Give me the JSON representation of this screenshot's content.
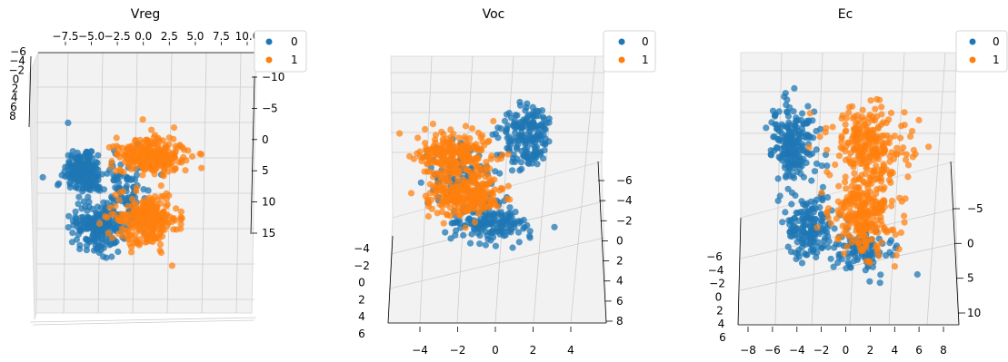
{
  "colors": {
    "class_0": "#1f77b4",
    "class_1": "#ff7f0e",
    "pane": "#f2f2f2",
    "grid": "#cccccc",
    "axis": "#000000"
  },
  "chart_data": [
    {
      "type": "scatter",
      "title": "Vreg",
      "projection": "3d",
      "grid": true,
      "legend_position": "top-right",
      "legend": [
        "0",
        "1"
      ],
      "axis_a_ticks": [
        "−7.5",
        "−5.0",
        "−2.5",
        "0.0",
        "2.5",
        "5.0",
        "7.5",
        "10.0"
      ],
      "axis_b_ticks": [
        "−10",
        "−5",
        "0",
        "5",
        "10",
        "15"
      ],
      "axis_c_ticks": [
        "−6",
        "−4",
        "−2",
        "0",
        "2",
        "4",
        "6",
        "8"
      ],
      "series": [
        {
          "name": "0",
          "clusters": [
            {
              "x": -6.0,
              "y": 0.5,
              "sx": 2.0,
              "sy": 3.0,
              "n": 190
            },
            {
              "x": -4.5,
              "y": 9.0,
              "sx": 2.2,
              "sy": 3.3,
              "n": 190
            },
            {
              "x": -1.0,
              "y": 4.0,
              "sx": 2.5,
              "sy": 4.5,
              "n": 110
            }
          ]
        },
        {
          "name": "1",
          "clusters": [
            {
              "x": 2.0,
              "y": -2.0,
              "sx": 3.3,
              "sy": 2.4,
              "n": 240
            },
            {
              "x": 1.5,
              "y": 8.0,
              "sx": 3.0,
              "sy": 3.4,
              "n": 260
            }
          ]
        }
      ]
    },
    {
      "type": "scatter",
      "title": "Voc",
      "projection": "3d",
      "grid": true,
      "legend_position": "top-right",
      "legend": [
        "0",
        "1"
      ],
      "axis_a_ticks": [
        "−4",
        "−2",
        "0",
        "2",
        "4"
      ],
      "axis_b_ticks": [
        "−6",
        "−4",
        "−2",
        "0",
        "2",
        "4",
        "6",
        "8"
      ],
      "axis_c_ticks": [
        "−4",
        "−2",
        "0",
        "2",
        "4",
        "6"
      ],
      "series": [
        {
          "name": "0",
          "clusters": [
            {
              "x": 2.5,
              "y": -1.0,
              "sx": 1.2,
              "sy": 2.2,
              "n": 180
            },
            {
              "x": 0.5,
              "y": 6.0,
              "sx": 1.8,
              "sy": 1.3,
              "n": 170
            },
            {
              "x": -1.2,
              "y": 2.0,
              "sx": 1.6,
              "sy": 2.0,
              "n": 100
            }
          ]
        },
        {
          "name": "1",
          "clusters": [
            {
              "x": -1.5,
              "y": 0.5,
              "sx": 1.7,
              "sy": 1.6,
              "n": 230
            },
            {
              "x": -1.0,
              "y": 3.8,
              "sx": 1.6,
              "sy": 1.5,
              "n": 250
            }
          ]
        }
      ]
    },
    {
      "type": "scatter",
      "title": "Ec",
      "projection": "3d",
      "grid": true,
      "legend_position": "top-right",
      "legend": [
        "0",
        "1"
      ],
      "axis_a_ticks": [
        "−8",
        "−6",
        "−4",
        "−2",
        "0",
        "2",
        "4",
        "6",
        "8"
      ],
      "axis_b_ticks": [
        "−5",
        "0",
        "5",
        "10"
      ],
      "axis_c_ticks": [
        "−6",
        "−4",
        "−2",
        "0",
        "2",
        "4",
        "6"
      ],
      "series": [
        {
          "name": "0",
          "clusters": [
            {
              "x": -5.0,
              "y": -3.0,
              "sx": 1.8,
              "sy": 3.0,
              "n": 200
            },
            {
              "x": -3.5,
              "y": 5.0,
              "sx": 1.8,
              "sy": 2.5,
              "n": 160
            },
            {
              "x": 1.0,
              "y": 7.0,
              "sx": 2.5,
              "sy": 1.8,
              "n": 110
            }
          ]
        },
        {
          "name": "1",
          "clusters": [
            {
              "x": 2.0,
              "y": -3.0,
              "sx": 3.0,
              "sy": 2.8,
              "n": 230
            },
            {
              "x": 1.5,
              "y": 3.5,
              "sx": 2.6,
              "sy": 3.0,
              "n": 260
            }
          ]
        }
      ]
    }
  ]
}
